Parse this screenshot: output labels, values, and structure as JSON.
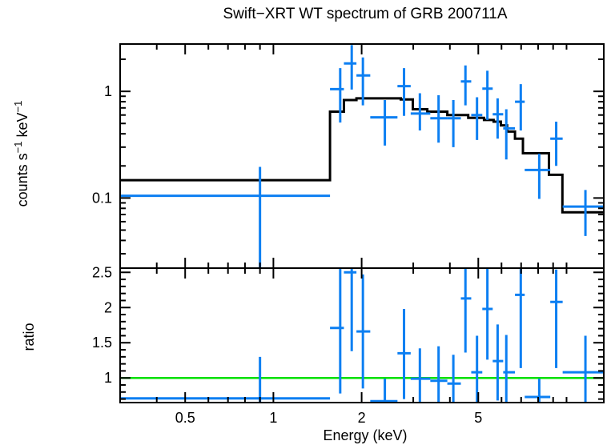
{
  "title": "Swift−XRT WT spectrum of GRB 200711A",
  "colors": {
    "data_points": "#0c7ff2",
    "model_line": "#000000",
    "unity_line": "#00e000",
    "frame": "#000000",
    "background": "#ffffff"
  },
  "x_axis": {
    "label": "Energy (keV)",
    "scale": "log",
    "range_kev": [
      0.3,
      13.4
    ],
    "labeled_ticks": [
      0.5,
      1,
      2,
      5
    ],
    "tick_labels": [
      "0.5",
      "1",
      "2",
      "5"
    ],
    "minor_ticks": [
      0.4,
      0.6,
      0.7,
      0.8,
      0.9,
      3,
      4,
      6,
      7,
      8,
      9,
      10
    ]
  },
  "chart_data": {
    "type": "scatter",
    "title": "Swift−XRT WT spectrum of GRB 200711A",
    "xlabel": "Energy (keV)",
    "x_scale": "log",
    "x_range": [
      0.3,
      13.4
    ],
    "panels": [
      "counts spectrum with folded model",
      "data/model ratio"
    ]
  },
  "top_panel": {
    "ylabel_plain": "counts s−1 keV−1",
    "ylabel_parts": [
      {
        "text": "counts s"
      },
      {
        "sup": "−1"
      },
      {
        "text": " keV"
      },
      {
        "sup": "−1"
      }
    ],
    "scale": "log",
    "range": [
      0.022,
      2.78
    ],
    "labeled_ticks": [
      0.1,
      1
    ],
    "tick_labels": [
      "0.1",
      "1"
    ],
    "minor_ticks": [
      0.03,
      0.04,
      0.05,
      0.06,
      0.07,
      0.08,
      0.09,
      0.2,
      0.3,
      0.4,
      0.5,
      0.6,
      0.7,
      0.8,
      0.9,
      2
    ],
    "data_points": [
      {
        "e": 0.9,
        "elo": 0.3,
        "ehi": 1.56,
        "v": 0.105,
        "vlo": 0.022,
        "vhi": 0.196
      },
      {
        "e": 1.69,
        "elo": 1.56,
        "ehi": 1.74,
        "v": 1.05,
        "vlo": 0.51,
        "vhi": 1.65
      },
      {
        "e": 1.85,
        "elo": 1.74,
        "ehi": 1.92,
        "v": 1.83,
        "vlo": 1.04,
        "vhi": 2.72
      },
      {
        "e": 2.02,
        "elo": 1.92,
        "ehi": 2.14,
        "v": 1.41,
        "vlo": 0.74,
        "vhi": 2.08
      },
      {
        "e": 2.4,
        "elo": 2.14,
        "ehi": 2.65,
        "v": 0.57,
        "vlo": 0.31,
        "vhi": 0.83
      },
      {
        "e": 2.79,
        "elo": 2.65,
        "ehi": 2.94,
        "v": 1.12,
        "vlo": 0.59,
        "vhi": 1.65
      },
      {
        "e": 3.16,
        "elo": 2.94,
        "ehi": 3.43,
        "v": 0.62,
        "vlo": 0.43,
        "vhi": 0.96
      },
      {
        "e": 3.66,
        "elo": 3.43,
        "ehi": 3.92,
        "v": 0.56,
        "vlo": 0.33,
        "vhi": 0.92
      },
      {
        "e": 4.11,
        "elo": 3.92,
        "ehi": 4.36,
        "v": 0.56,
        "vlo": 0.3,
        "vhi": 0.83
      },
      {
        "e": 4.52,
        "elo": 4.36,
        "ehi": 4.73,
        "v": 1.24,
        "vlo": 0.74,
        "vhi": 1.75
      },
      {
        "e": 4.95,
        "elo": 4.73,
        "ehi": 5.16,
        "v": 0.6,
        "vlo": 0.35,
        "vhi": 0.88
      },
      {
        "e": 5.37,
        "elo": 5.16,
        "ehi": 5.6,
        "v": 1.06,
        "vlo": 0.54,
        "vhi": 1.56
      },
      {
        "e": 5.82,
        "elo": 5.6,
        "ehi": 6.08,
        "v": 0.61,
        "vlo": 0.36,
        "vhi": 0.86
      },
      {
        "e": 6.23,
        "elo": 6.08,
        "ehi": 6.67,
        "v": 0.45,
        "vlo": 0.23,
        "vhi": 0.68
      },
      {
        "e": 6.98,
        "elo": 6.67,
        "ehi": 7.2,
        "v": 0.8,
        "vlo": 0.43,
        "vhi": 1.17
      },
      {
        "e": 8.07,
        "elo": 7.2,
        "ehi": 8.8,
        "v": 0.183,
        "vlo": 0.098,
        "vhi": 0.26
      },
      {
        "e": 9.22,
        "elo": 8.8,
        "ehi": 9.7,
        "v": 0.36,
        "vlo": 0.2,
        "vhi": 0.52
      },
      {
        "e": 11.6,
        "elo": 9.7,
        "ehi": 13.4,
        "v": 0.083,
        "vlo": 0.044,
        "vhi": 0.119
      }
    ],
    "model_steps": [
      {
        "elo": 0.3,
        "ehi": 1.56,
        "v": 0.147
      },
      {
        "elo": 1.56,
        "ehi": 1.74,
        "v": 0.645
      },
      {
        "elo": 1.74,
        "ehi": 1.92,
        "v": 0.83
      },
      {
        "elo": 1.92,
        "ehi": 2.72,
        "v": 0.86
      },
      {
        "elo": 2.72,
        "ehi": 2.99,
        "v": 0.84
      },
      {
        "elo": 2.99,
        "ehi": 3.35,
        "v": 0.68
      },
      {
        "elo": 3.35,
        "ehi": 3.92,
        "v": 0.645
      },
      {
        "elo": 3.92,
        "ehi": 4.62,
        "v": 0.6
      },
      {
        "elo": 4.62,
        "ehi": 5.23,
        "v": 0.565
      },
      {
        "elo": 5.23,
        "ehi": 5.64,
        "v": 0.54
      },
      {
        "elo": 5.64,
        "ehi": 5.97,
        "v": 0.52
      },
      {
        "elo": 5.97,
        "ehi": 6.27,
        "v": 0.48
      },
      {
        "elo": 6.27,
        "ehi": 6.67,
        "v": 0.42
      },
      {
        "elo": 6.67,
        "ehi": 7.1,
        "v": 0.36
      },
      {
        "elo": 7.1,
        "ehi": 8.71,
        "v": 0.263
      },
      {
        "elo": 8.71,
        "ehi": 9.68,
        "v": 0.165
      },
      {
        "elo": 9.68,
        "ehi": 13.4,
        "v": 0.0735
      }
    ]
  },
  "bottom_panel": {
    "ylabel": "ratio",
    "scale": "linear",
    "range": [
      0.65,
      2.56
    ],
    "labeled_ticks": [
      1,
      1.5,
      2,
      2.5
    ],
    "tick_labels": [
      "1",
      "1.5",
      "2",
      "2.5"
    ],
    "minor_ticks": [
      0.7,
      0.8,
      0.9,
      1.1,
      1.2,
      1.3,
      1.4,
      1.6,
      1.7,
      1.8,
      1.9,
      2.1,
      2.2,
      2.3,
      2.4
    ],
    "unity_line": 1.0,
    "data_points": [
      {
        "e": 0.9,
        "elo": 0.3,
        "ehi": 1.56,
        "v": 0.71,
        "vlo": 0.65,
        "vhi": 1.3
      },
      {
        "e": 1.69,
        "elo": 1.56,
        "ehi": 1.74,
        "v": 1.71,
        "vlo": 0.78,
        "vhi": 2.56
      },
      {
        "e": 1.85,
        "elo": 1.74,
        "ehi": 1.92,
        "v": 2.5,
        "vlo": 1.38,
        "vhi": 2.56
      },
      {
        "e": 2.02,
        "elo": 1.92,
        "ehi": 2.14,
        "v": 1.66,
        "vlo": 0.85,
        "vhi": 2.47
      },
      {
        "e": 2.4,
        "elo": 2.14,
        "ehi": 2.65,
        "v": 0.67,
        "vlo": 0.65,
        "vhi": 0.99
      },
      {
        "e": 2.79,
        "elo": 2.65,
        "ehi": 2.94,
        "v": 1.35,
        "vlo": 0.7,
        "vhi": 1.98
      },
      {
        "e": 3.16,
        "elo": 2.94,
        "ehi": 3.43,
        "v": 0.99,
        "vlo": 0.65,
        "vhi": 1.42
      },
      {
        "e": 3.66,
        "elo": 3.43,
        "ehi": 3.92,
        "v": 0.96,
        "vlo": 0.65,
        "vhi": 1.45
      },
      {
        "e": 4.11,
        "elo": 3.92,
        "ehi": 4.36,
        "v": 0.92,
        "vlo": 0.66,
        "vhi": 1.33
      },
      {
        "e": 4.52,
        "elo": 4.36,
        "ehi": 4.73,
        "v": 2.13,
        "vlo": 1.36,
        "vhi": 2.56
      },
      {
        "e": 4.95,
        "elo": 4.73,
        "ehi": 5.16,
        "v": 1.08,
        "vlo": 0.66,
        "vhi": 1.6
      },
      {
        "e": 5.37,
        "elo": 5.16,
        "ehi": 5.6,
        "v": 1.98,
        "vlo": 1.26,
        "vhi": 2.56
      },
      {
        "e": 5.82,
        "elo": 5.6,
        "ehi": 6.08,
        "v": 1.24,
        "vlo": 0.68,
        "vhi": 1.76
      },
      {
        "e": 6.23,
        "elo": 6.08,
        "ehi": 6.67,
        "v": 1.08,
        "vlo": 0.65,
        "vhi": 1.61
      },
      {
        "e": 6.98,
        "elo": 6.67,
        "ehi": 7.2,
        "v": 2.18,
        "vlo": 1.14,
        "vhi": 2.56
      },
      {
        "e": 8.07,
        "elo": 7.2,
        "ehi": 8.8,
        "v": 0.73,
        "vlo": 0.65,
        "vhi": 0.99
      },
      {
        "e": 9.22,
        "elo": 8.8,
        "ehi": 9.7,
        "v": 2.08,
        "vlo": 1.14,
        "vhi": 2.54
      },
      {
        "e": 11.6,
        "elo": 9.7,
        "ehi": 13.4,
        "v": 1.08,
        "vlo": 0.65,
        "vhi": 1.6
      }
    ]
  }
}
